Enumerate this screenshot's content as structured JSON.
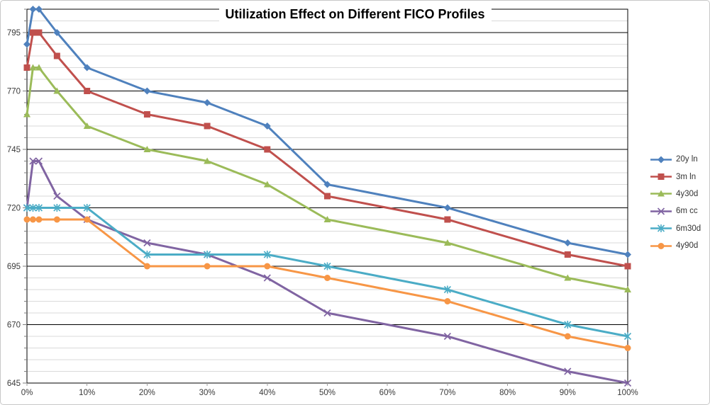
{
  "chart_data": {
    "type": "line",
    "title": "Utilization Effect on Different FICO Profiles",
    "xlabel": "",
    "ylabel": "",
    "xlim": [
      0,
      100
    ],
    "ylim": [
      645,
      805
    ],
    "x": [
      0,
      1,
      2,
      5,
      10,
      20,
      30,
      40,
      50,
      70,
      90,
      100
    ],
    "x_ticks": [
      0,
      10,
      20,
      30,
      40,
      50,
      60,
      70,
      80,
      90,
      100
    ],
    "x_tick_labels": [
      "0%",
      "10%",
      "20%",
      "30%",
      "40%",
      "50%",
      "60%",
      "70%",
      "80%",
      "90%",
      "100%"
    ],
    "y_major_ticks": [
      645,
      670,
      695,
      720,
      745,
      770,
      795
    ],
    "y_tick_labels": [
      "645",
      "670",
      "695",
      "720",
      "745",
      "770",
      "795"
    ],
    "y_minor_step": 5,
    "grid": {
      "major_color": "#000000",
      "minor_color": "#dadada",
      "vertical_gridlines": false
    },
    "legend_position": "right",
    "series": [
      {
        "name": "20y ln",
        "color": "#4F81BD",
        "marker": "diamond",
        "values": [
          790,
          805,
          805,
          795,
          780,
          770,
          765,
          755,
          730,
          720,
          705,
          700
        ]
      },
      {
        "name": "3m ln",
        "color": "#C0504D",
        "marker": "square",
        "values": [
          780,
          795,
          795,
          785,
          770,
          760,
          755,
          745,
          725,
          715,
          700,
          695
        ]
      },
      {
        "name": "4y30d",
        "color": "#9BBB59",
        "marker": "triangle",
        "values": [
          760,
          780,
          780,
          770,
          755,
          745,
          740,
          730,
          715,
          705,
          690,
          685
        ]
      },
      {
        "name": "6m cc",
        "color": "#8064A2",
        "marker": "x",
        "values": [
          720,
          740,
          740,
          725,
          715,
          705,
          700,
          690,
          675,
          665,
          650,
          645
        ]
      },
      {
        "name": "6m30d",
        "color": "#4BACC6",
        "marker": "asterisk",
        "values": [
          720,
          720,
          720,
          720,
          720,
          700,
          700,
          700,
          695,
          685,
          670,
          665
        ]
      },
      {
        "name": "4y90d",
        "color": "#F79646",
        "marker": "circle",
        "values": [
          715,
          715,
          715,
          715,
          715,
          695,
          695,
          695,
          690,
          680,
          665,
          660
        ]
      }
    ],
    "axis_label_color": "#3a3a3a",
    "plot_background": "#ffffff"
  }
}
